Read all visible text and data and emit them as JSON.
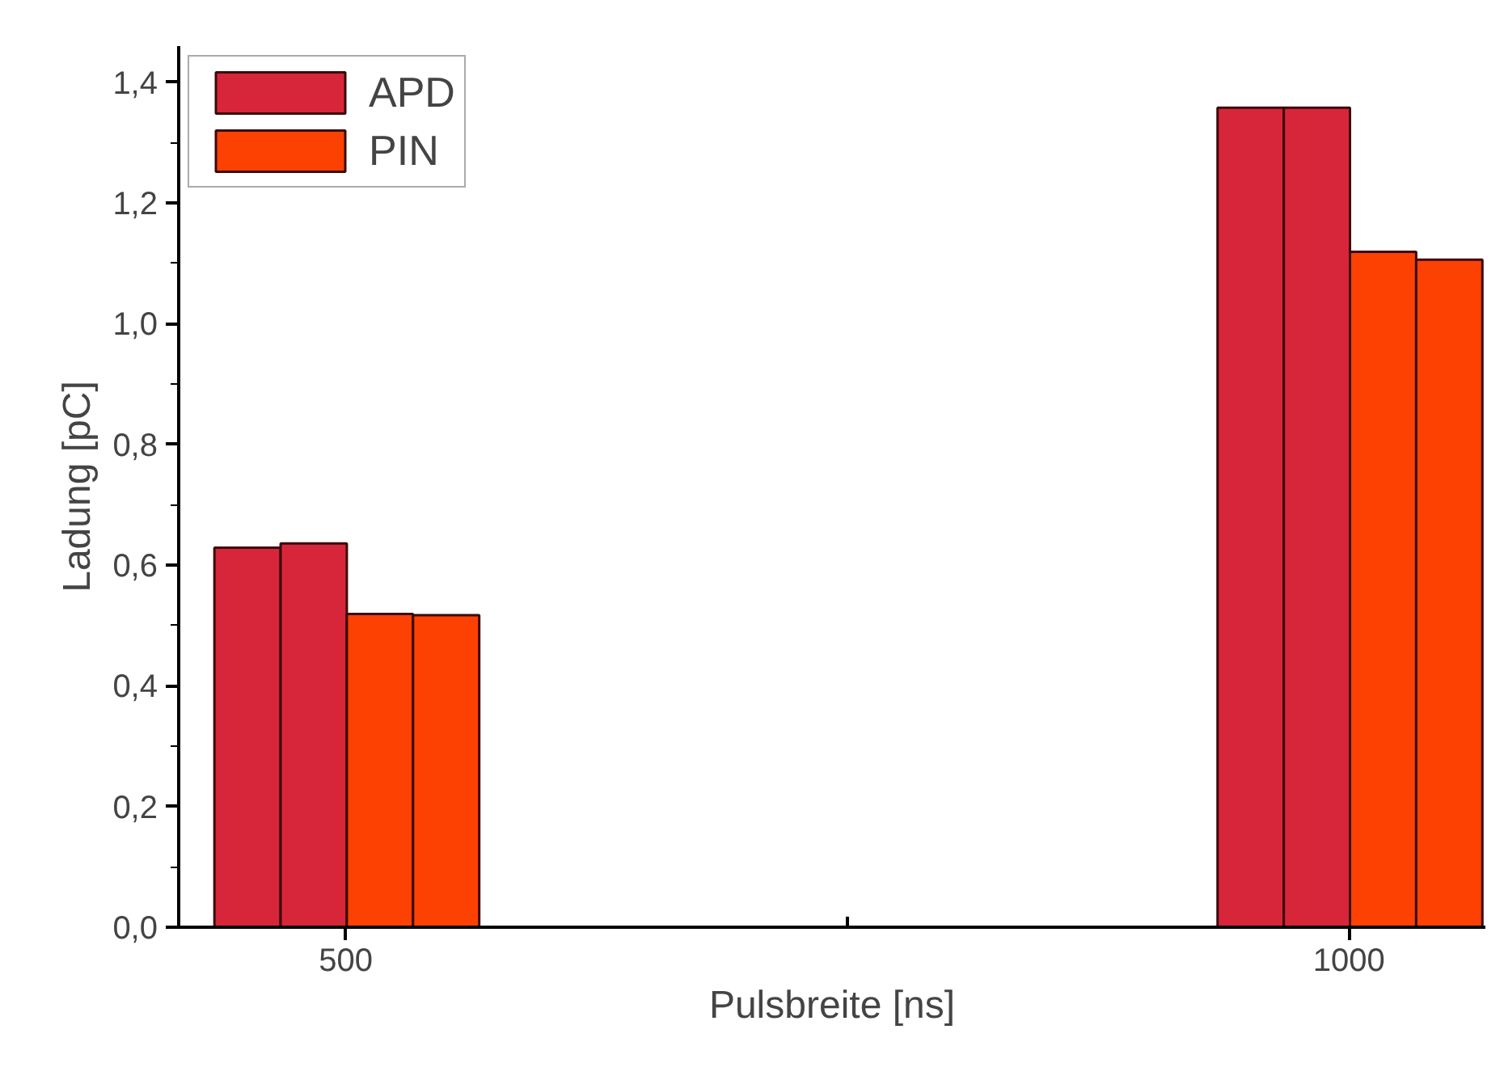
{
  "chart_data": {
    "type": "bar",
    "xlabel": "Pulsbreite [ns]",
    "ylabel": "Ladung [pC]",
    "series": [
      {
        "name": "APD",
        "color": "#d7263a",
        "x": [
          451,
          484,
          951,
          984
        ],
        "values": [
          0.629,
          0.636,
          1.358,
          1.358
        ]
      },
      {
        "name": "PIN",
        "color": "#fc4103",
        "x": [
          517,
          550,
          1017,
          1050
        ],
        "values": [
          0.519,
          0.517,
          1.119,
          1.106
        ]
      }
    ],
    "xlim": [
      416.7,
      1068
    ],
    "xticks": [
      500,
      {
        "value": 750,
        "label": null
      },
      1000
    ],
    "ylim": [
      0,
      1.46
    ],
    "yticks": [
      {
        "value": 0,
        "label": "0,0"
      },
      {
        "value": 0.2,
        "label": "0,2"
      },
      {
        "value": 0.4,
        "label": "0,4"
      },
      {
        "value": 0.6,
        "label": "0,6"
      },
      {
        "value": 0.8,
        "label": "0,8"
      },
      {
        "value": 1.0,
        "label": "1,0"
      },
      {
        "value": 1.2,
        "label": "1,2"
      },
      {
        "value": 1.4,
        "label": "1,4"
      }
    ],
    "grid": false,
    "legend": "top left"
  }
}
